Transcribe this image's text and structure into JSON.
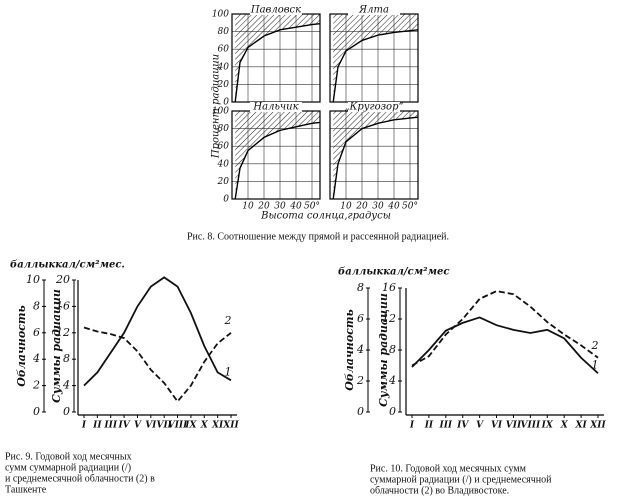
{
  "chart_data": [
    {
      "type": "panels",
      "caption": "Рис. 8. Соотношение между прямой и рассеянной радиацией.",
      "ylabel": "Процент радиации",
      "xlabel": "Высота солнца,градусы",
      "xlim": [
        0,
        55
      ],
      "ylim": [
        0,
        100
      ],
      "xticks": [
        10,
        20,
        30,
        40,
        {
          "value": 50,
          "label": "50°"
        }
      ],
      "yticks": [
        0,
        20,
        40,
        60,
        80,
        100
      ],
      "hatch": true,
      "panels": [
        {
          "title": "Павловск",
          "x": [
            2,
            5,
            10,
            20,
            30,
            40,
            50,
            55
          ],
          "values": [
            0,
            45,
            62,
            75,
            82,
            85,
            88,
            89
          ]
        },
        {
          "title": "Ялта",
          "x": [
            2,
            5,
            10,
            20,
            30,
            40,
            50,
            55
          ],
          "values": [
            0,
            40,
            58,
            70,
            76,
            79,
            81,
            82
          ]
        },
        {
          "title": "Нальчик",
          "x": [
            2,
            5,
            10,
            20,
            30,
            40,
            50,
            55
          ],
          "values": [
            0,
            35,
            55,
            70,
            78,
            82,
            86,
            87
          ]
        },
        {
          "title": "„Кругозор“",
          "x": [
            2,
            5,
            10,
            20,
            30,
            40,
            50,
            55
          ],
          "values": [
            0,
            40,
            65,
            80,
            86,
            90,
            92,
            93
          ]
        }
      ]
    },
    {
      "type": "dual_line",
      "units": "баллыккал/см²мес.",
      "ylabel": "Облачность",
      "y2label": "Суммы радиации",
      "categories": [
        "I",
        "II",
        "III",
        "IV",
        "V",
        "VI",
        "VII",
        "VIII",
        "IX",
        "X",
        "XI",
        "XII"
      ],
      "ylim": [
        0,
        10
      ],
      "yticks": [
        0,
        2,
        4,
        6,
        8,
        10
      ],
      "y2lim": [
        0,
        20
      ],
      "y2ticks": [
        0,
        4,
        8,
        12,
        16,
        20
      ],
      "series": [
        {
          "name": "1",
          "color": "#111",
          "axis": "y2",
          "dashed": false,
          "values": [
            4,
            6,
            9,
            12,
            16,
            19,
            20.4,
            19,
            15,
            10,
            6,
            4.8
          ]
        },
        {
          "name": "2",
          "color": "#111",
          "axis": "y",
          "dashed": true,
          "values": [
            6.4,
            6.1,
            5.9,
            5.6,
            4.6,
            3.2,
            2.2,
            0.8,
            2,
            3.8,
            5.2,
            6
          ]
        }
      ],
      "caption": [
        "Рис. 9. Годовой ход месячных",
        "сумм суммарной радиации (/)",
        "и среднемесячной облачности (2) в",
        "Ташкенте"
      ]
    },
    {
      "type": "dual_line",
      "units": "баллыккал/см²мес",
      "ylabel": "Облачность",
      "y2label": "Суммы радиации",
      "categories": [
        "I",
        "II",
        "III",
        "IV",
        "V",
        "VI",
        "VII",
        "VIII",
        "IX",
        "X",
        "XI",
        "XII"
      ],
      "ylim": [
        0,
        8
      ],
      "yticks": [
        0,
        2,
        4,
        6,
        8
      ],
      "y2lim": [
        0,
        16
      ],
      "y2ticks": [
        0,
        4,
        8,
        12,
        16
      ],
      "series": [
        {
          "name": "1",
          "color": "#111",
          "axis": "y2",
          "dashed": false,
          "values": [
            5.8,
            8,
            10.5,
            11.5,
            12.2,
            11.2,
            10.6,
            10.2,
            10.6,
            9.5,
            7,
            5
          ]
        },
        {
          "name": "2",
          "color": "#111",
          "axis": "y",
          "dashed": true,
          "values": [
            3,
            3.6,
            5,
            6,
            7.3,
            7.8,
            7.6,
            6.8,
            5.8,
            5,
            4.3,
            3.5
          ]
        }
      ],
      "caption": [
        "Рис. 10. Годовой ход месячных сумм",
        "суммарной радиации (/) и среднемесячной",
        "облачности (2) во Владивостоке."
      ]
    }
  ]
}
